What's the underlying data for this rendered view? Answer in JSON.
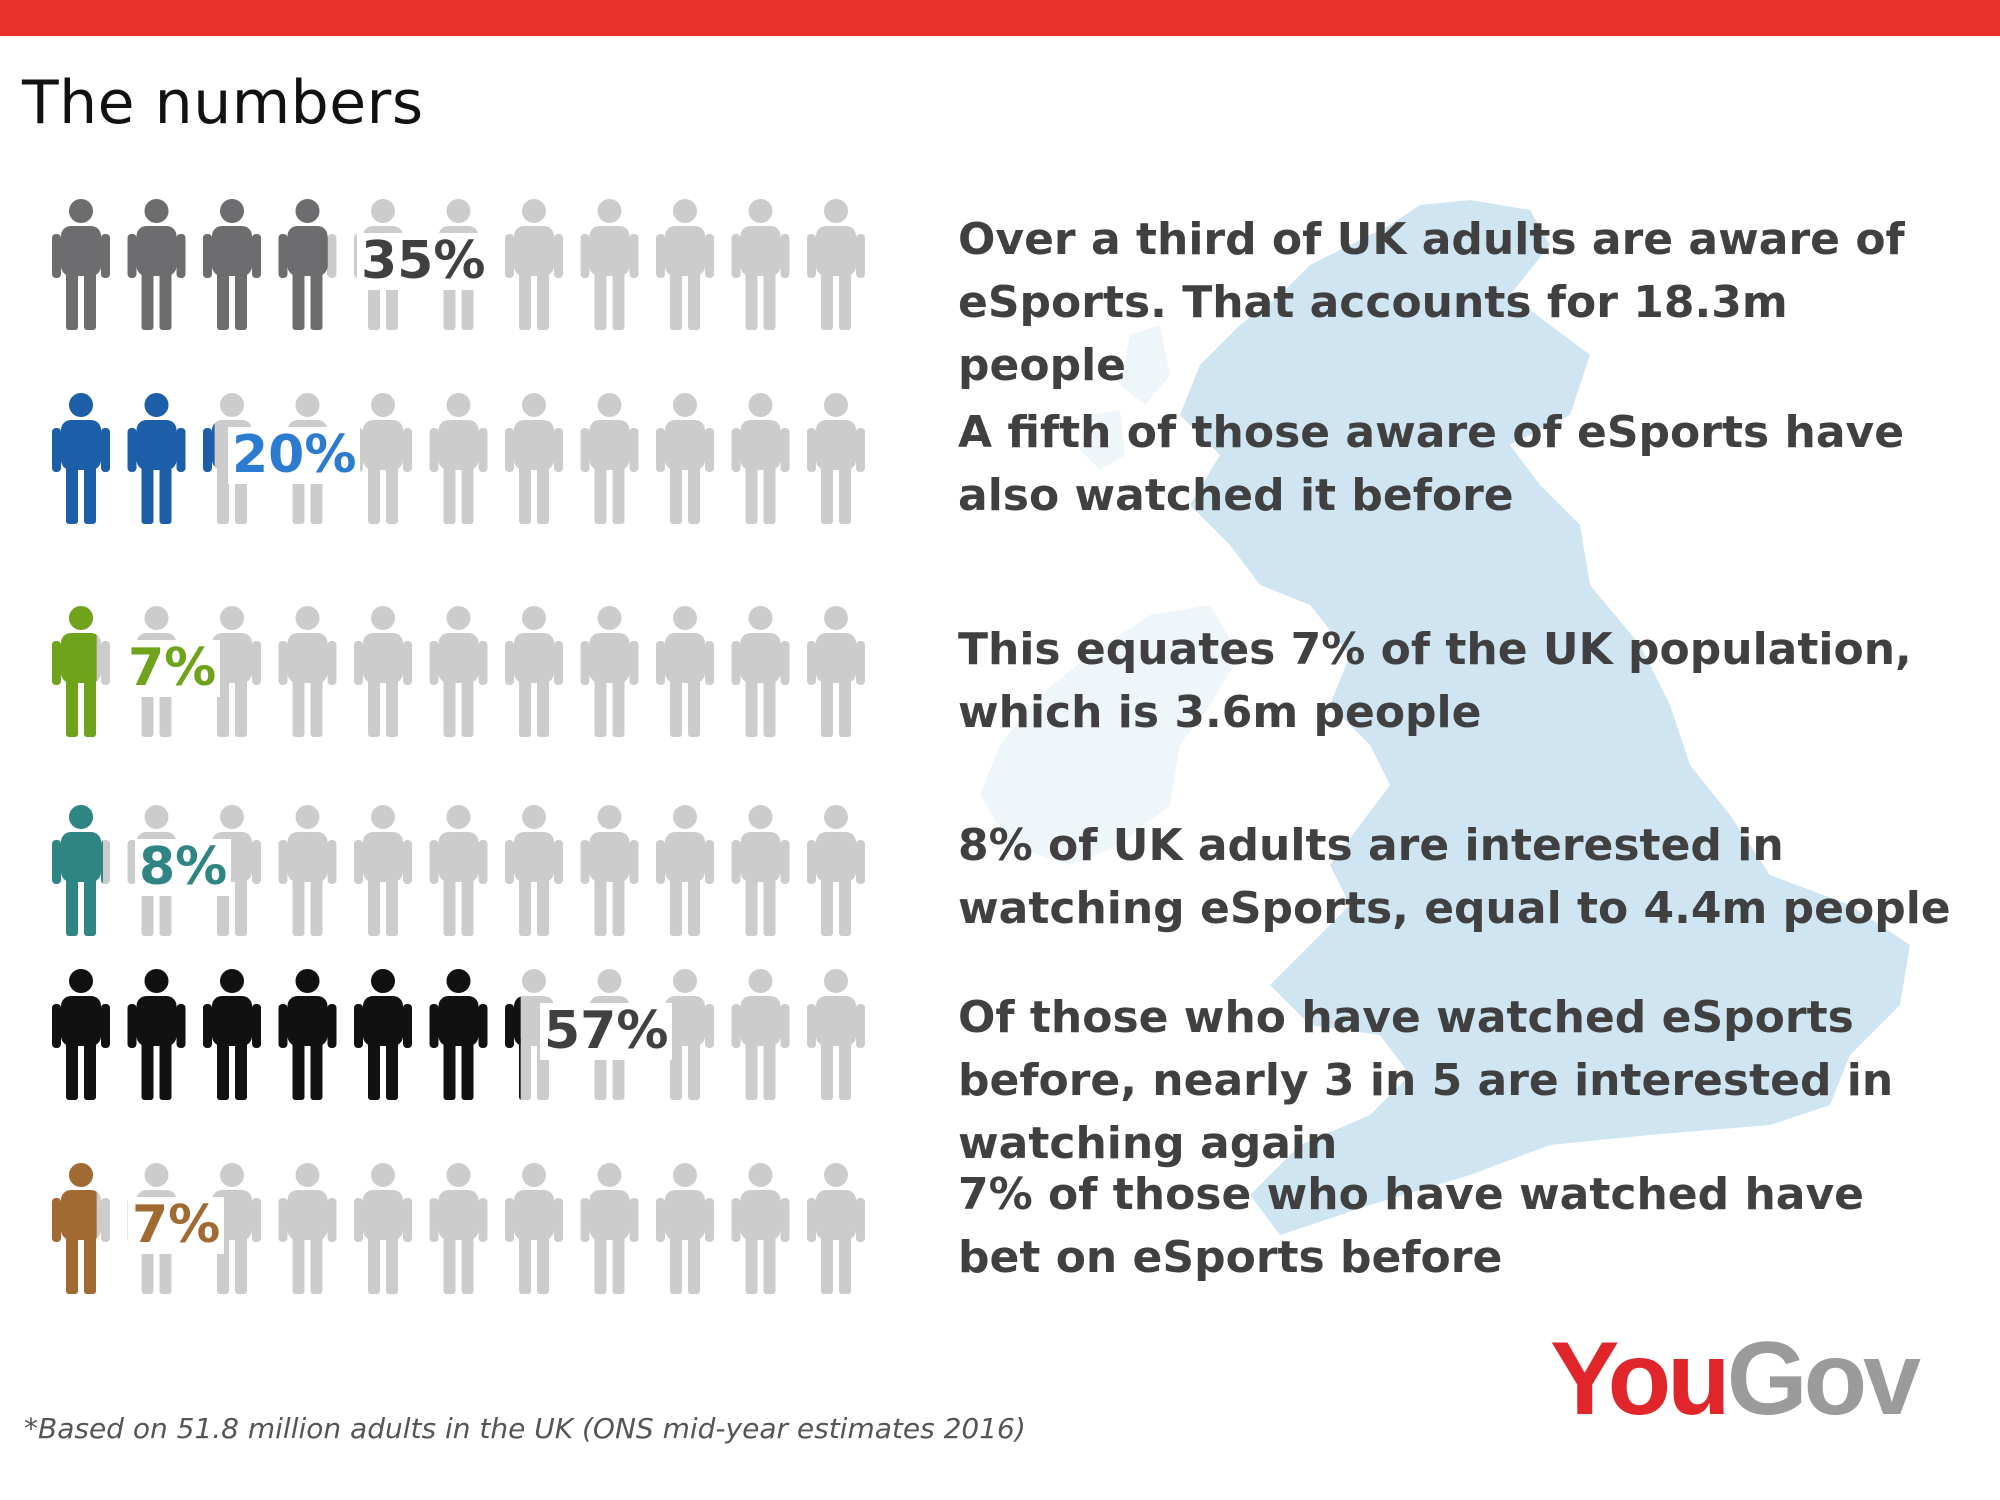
{
  "title": "The numbers",
  "colors": {
    "top_bar": "#e8312a",
    "inactive_icon": "#cccccc",
    "map": "#cfe6f2"
  },
  "chart_data": {
    "type": "pictograph",
    "icons_per_row": 11,
    "rows": [
      {
        "label": "35%",
        "value": 35,
        "color": "#6d6d6f",
        "label_color": "#404040",
        "statement": "Over a third of UK adults are aware of eSports. That accounts for 18.3m people"
      },
      {
        "label": "20%",
        "value": 20,
        "color": "#1d5ea8",
        "label_color": "#2b7bd0",
        "statement": "A fifth of those aware of eSports have also watched it before"
      },
      {
        "label": "7%",
        "value": 7,
        "color": "#6fa31b",
        "label_color": "#6fa31b",
        "statement": "This equates 7% of the UK population, which is 3.6m people"
      },
      {
        "label": "8%",
        "value": 8,
        "color": "#2e8584",
        "label_color": "#2e8584",
        "statement": "8% of UK adults are interested in watching eSports, equal to 4.4m people"
      },
      {
        "label": "57%",
        "value": 57,
        "color": "#111111",
        "label_color": "#404040",
        "statement": "Of those who have watched eSports before, nearly 3 in 5 are interested in watching again"
      },
      {
        "label": "7%",
        "value": 7,
        "color": "#a06a32",
        "label_color": "#a06a32",
        "statement": "7% of those who have watched have bet on eSports before"
      }
    ]
  },
  "logo": {
    "you": "You",
    "gov": "Gov"
  },
  "footnote": "*Based on 51.8 million adults in the UK (ONS mid-year estimates 2016)"
}
